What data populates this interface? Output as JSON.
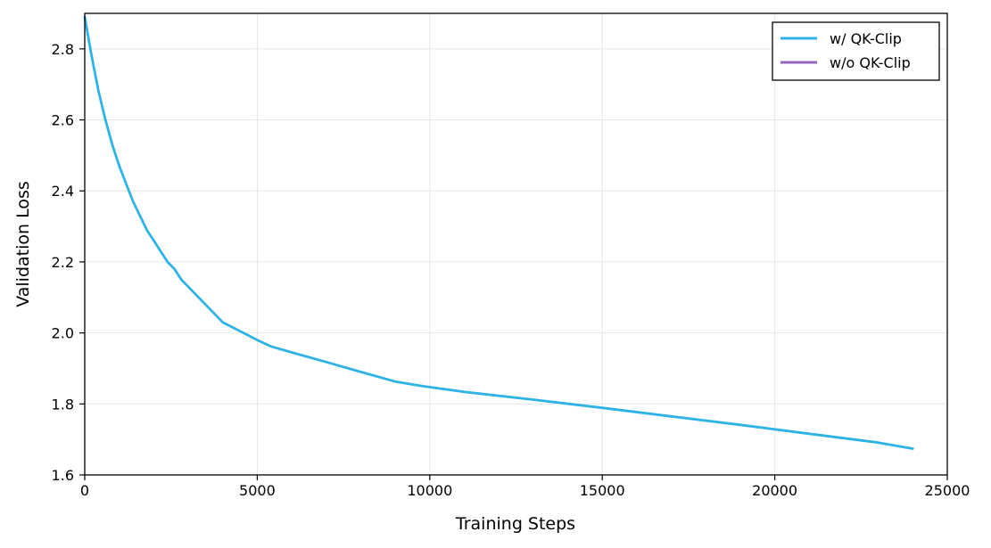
{
  "chart_data": {
    "type": "line",
    "xlabel": "Training Steps",
    "ylabel": "Validation Loss",
    "xlim": [
      0,
      25000
    ],
    "ylim": [
      1.6,
      2.9
    ],
    "xticks": [
      0,
      5000,
      10000,
      15000,
      20000,
      25000
    ],
    "xtick_labels": [
      "0",
      "5000",
      "10000",
      "15000",
      "20000",
      "25000"
    ],
    "yticks": [
      1.6,
      1.8,
      2.0,
      2.2,
      2.4,
      2.6,
      2.8
    ],
    "ytick_labels": [
      "1.6",
      "1.8",
      "2.0",
      "2.2",
      "2.4",
      "2.6",
      "2.8"
    ],
    "grid": true,
    "legend_position": "top-right",
    "series": [
      {
        "name": "w/ QK-Clip",
        "color": "#2db3e5",
        "x": [
          0,
          200,
          400,
          600,
          800,
          1000,
          1200,
          1400,
          1600,
          1800,
          2000,
          2200,
          2400,
          2600,
          2800,
          3200,
          3600,
          4000,
          4500,
          5000,
          5400,
          6000,
          7000,
          8000,
          9000,
          9800,
          11000,
          13000,
          15000,
          17000,
          19000,
          21000,
          23000,
          24000
        ],
        "y": [
          2.89,
          2.78,
          2.68,
          2.6,
          2.53,
          2.47,
          2.42,
          2.37,
          2.33,
          2.29,
          2.26,
          2.23,
          2.2,
          2.18,
          2.15,
          2.11,
          2.07,
          2.03,
          2.005,
          1.98,
          1.962,
          1.945,
          1.918,
          1.89,
          1.863,
          1.85,
          1.834,
          1.812,
          1.789,
          1.765,
          1.741,
          1.716,
          1.691,
          1.674
        ]
      },
      {
        "name": "w/o QK-Clip",
        "color": "#9467bd",
        "x": [],
        "y": []
      }
    ]
  }
}
